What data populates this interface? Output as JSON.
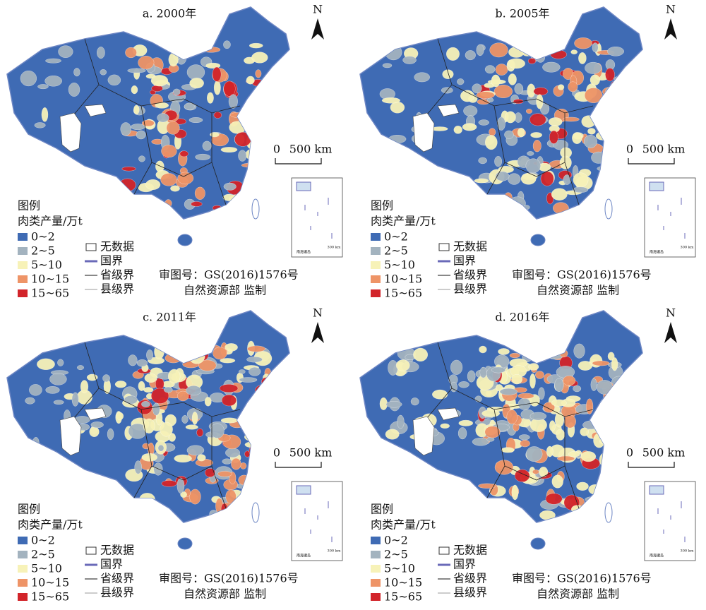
{
  "panels": [
    {
      "title": "a. 2000年",
      "north": "N",
      "scale": {
        "zero": "0",
        "label": "500 km"
      },
      "legend": {
        "title": "图例",
        "subtitle": "肉类产量/万t",
        "classes": [
          {
            "label": "0~2",
            "color": "#3f6bb4"
          },
          {
            "label": "2~5",
            "color": "#a3b3bf"
          },
          {
            "label": "5~10",
            "color": "#f7f2b8"
          },
          {
            "label": "10~15",
            "color": "#ee9467"
          },
          {
            "label": "15~65",
            "color": "#d2242a"
          }
        ],
        "lines": [
          "无数据",
          "国界",
          "省级界",
          "县级界"
        ]
      },
      "approval": "审图号：GS(2016)1576号",
      "supervisor": "自然资源部 监制",
      "inset": {
        "label": "南海诸岛",
        "scale": "300 km"
      }
    },
    {
      "title": "b. 2005年",
      "north": "N",
      "scale": {
        "zero": "0",
        "label": "500 km"
      },
      "legend": {
        "title": "图例",
        "subtitle": "肉类产量/万t",
        "classes": [
          {
            "label": "0~2",
            "color": "#3f6bb4"
          },
          {
            "label": "2~5",
            "color": "#a3b3bf"
          },
          {
            "label": "5~10",
            "color": "#f7f2b8"
          },
          {
            "label": "10~15",
            "color": "#ee9467"
          },
          {
            "label": "15~65",
            "color": "#d2242a"
          }
        ],
        "lines": [
          "无数据",
          "国界",
          "省级界",
          "县级界"
        ]
      },
      "approval": "审图号：GS(2016)1576号",
      "supervisor": "自然资源部 监制",
      "inset": {
        "label": "南海诸岛",
        "scale": "300 km"
      }
    },
    {
      "title": "c. 2011年",
      "north": "N",
      "scale": {
        "zero": "0",
        "label": "500 km"
      },
      "legend": {
        "title": "图例",
        "subtitle": "肉类产量/万t",
        "classes": [
          {
            "label": "0~2",
            "color": "#3f6bb4"
          },
          {
            "label": "2~5",
            "color": "#a3b3bf"
          },
          {
            "label": "5~10",
            "color": "#f7f2b8"
          },
          {
            "label": "10~15",
            "color": "#ee9467"
          },
          {
            "label": "15~65",
            "color": "#d2242a"
          }
        ],
        "lines": [
          "无数据",
          "国界",
          "省级界",
          "县级界"
        ]
      },
      "approval": "审图号：GS(2016)1576号",
      "supervisor": "自然资源部 监制",
      "inset": {
        "label": "南海诸岛",
        "scale": "300 km"
      }
    },
    {
      "title": "d. 2016年",
      "north": "N",
      "scale": {
        "zero": "0",
        "label": "500 km"
      },
      "legend": {
        "title": "图例",
        "subtitle": "肉类产量/万t",
        "classes": [
          {
            "label": "0~2",
            "color": "#3f6bb4"
          },
          {
            "label": "2~5",
            "color": "#a3b3bf"
          },
          {
            "label": "5~10",
            "color": "#f7f2b8"
          },
          {
            "label": "10~15",
            "color": "#ee9467"
          },
          {
            "label": "15~65",
            "color": "#d2242a"
          }
        ],
        "lines": [
          "无数据",
          "国界",
          "省级界",
          "县级界"
        ]
      },
      "approval": "审图号：GS(2016)1576号",
      "supervisor": "自然资源部 监制",
      "inset": {
        "label": "南海诸岛",
        "scale": "300 km"
      }
    }
  ]
}
